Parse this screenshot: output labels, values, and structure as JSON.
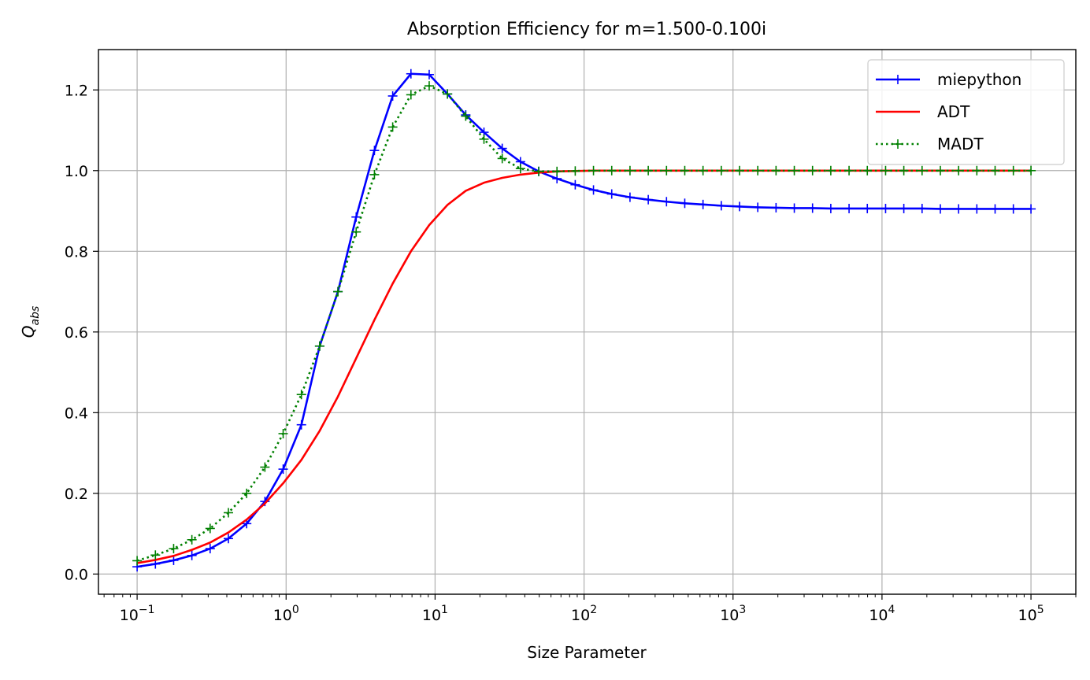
{
  "chart_data": {
    "type": "line",
    "title": "Absorption Efficiency for m=1.500-0.100i",
    "xlabel": "Size Parameter",
    "ylabel": "Q",
    "ylabel_sub": "abs",
    "xscale": "log",
    "xlim": [
      0.055,
      200000
    ],
    "ylim": [
      -0.05,
      1.3
    ],
    "grid": true,
    "legend_position": "top-right",
    "xticks": [
      {
        "base": "10",
        "exp": "−1"
      },
      {
        "base": "10",
        "exp": "0"
      },
      {
        "base": "10",
        "exp": "1"
      },
      {
        "base": "10",
        "exp": "2"
      },
      {
        "base": "10",
        "exp": "3"
      },
      {
        "base": "10",
        "exp": "4"
      },
      {
        "base": "10",
        "exp": "5"
      }
    ],
    "yticks": [
      "0.0",
      "0.2",
      "0.4",
      "0.6",
      "0.8",
      "1.0",
      "1.2"
    ],
    "x": [
      0.1,
      0.1326,
      0.1758,
      0.2331,
      0.3091,
      0.4099,
      0.5435,
      0.7207,
      0.9556,
      1.267,
      1.68,
      2.228,
      2.954,
      3.917,
      5.194,
      6.887,
      9.132,
      12.11,
      16.06,
      21.29,
      28.23,
      37.43,
      49.63,
      65.81,
      87.26,
      115.7,
      153.4,
      203.4,
      269.8,
      357.7,
      474.3,
      628.9,
      833.9,
      1106,
      1466,
      1944,
      2578,
      3418,
      4532,
      6010,
      7969,
      10570,
      14010,
      18580,
      24640,
      32670,
      43310,
      57430,
      76150,
      100000
    ],
    "series": [
      {
        "name": "miepython",
        "color": "#0000ff",
        "line": "solid",
        "marker": "plus",
        "values": [
          0.018,
          0.025,
          0.034,
          0.046,
          0.063,
          0.088,
          0.125,
          0.18,
          0.26,
          0.37,
          0.565,
          0.7,
          0.885,
          1.05,
          1.185,
          1.24,
          1.238,
          1.19,
          1.138,
          1.095,
          1.055,
          1.022,
          0.998,
          0.98,
          0.965,
          0.952,
          0.942,
          0.934,
          0.928,
          0.923,
          0.919,
          0.916,
          0.913,
          0.911,
          0.909,
          0.908,
          0.907,
          0.907,
          0.906,
          0.906,
          0.906,
          0.906,
          0.906,
          0.906,
          0.905,
          0.905,
          0.905,
          0.905,
          0.905,
          0.905
        ]
      },
      {
        "name": "ADT",
        "color": "#ff0000",
        "line": "solid",
        "marker": "none",
        "values": [
          0.027,
          0.035,
          0.045,
          0.06,
          0.078,
          0.103,
          0.135,
          0.175,
          0.225,
          0.283,
          0.355,
          0.44,
          0.535,
          0.63,
          0.72,
          0.8,
          0.865,
          0.915,
          0.95,
          0.97,
          0.982,
          0.99,
          0.995,
          0.998,
          0.999,
          1.0,
          1.0,
          1.0,
          1.0,
          1.0,
          1.0,
          1.0,
          1.0,
          1.0,
          1.0,
          1.0,
          1.0,
          1.0,
          1.0,
          1.0,
          1.0,
          1.0,
          1.0,
          1.0,
          1.0,
          1.0,
          1.0,
          1.0,
          1.0,
          1.0
        ]
      },
      {
        "name": "MADT",
        "color": "#008000",
        "line": "dotted",
        "marker": "plus",
        "values": [
          0.033,
          0.047,
          0.063,
          0.085,
          0.113,
          0.152,
          0.2,
          0.265,
          0.348,
          0.445,
          0.565,
          0.7,
          0.848,
          0.99,
          1.108,
          1.188,
          1.21,
          1.19,
          1.135,
          1.078,
          1.03,
          1.005,
          0.998,
          0.998,
          0.999,
          1.0,
          1.0,
          1.0,
          1.0,
          1.0,
          1.0,
          1.0,
          1.0,
          1.0,
          1.0,
          1.0,
          1.0,
          1.0,
          1.0,
          1.0,
          1.0,
          1.0,
          1.0,
          1.0,
          1.0,
          1.0,
          1.0,
          1.0,
          1.0,
          1.0
        ]
      }
    ]
  }
}
